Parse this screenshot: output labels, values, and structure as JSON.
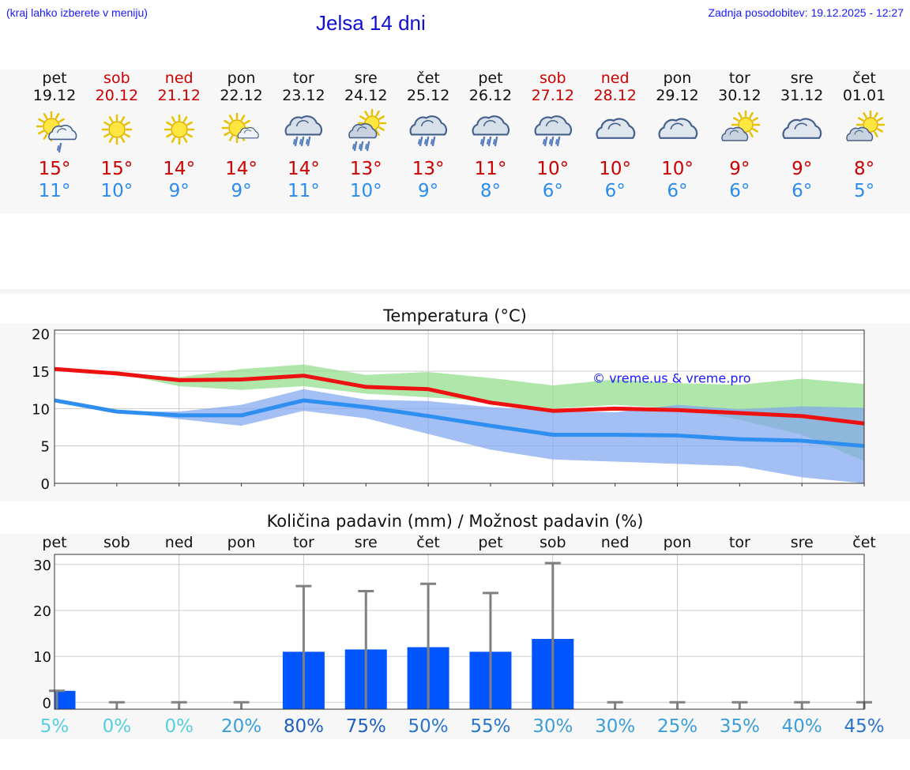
{
  "header": {
    "left_note": "(kraj lahko izberete v meniju)",
    "title": "Jelsa 14 dni",
    "updated": "Zadnja posodobitev: 19.12.2025 - 12:27"
  },
  "days": [
    {
      "name": "pet",
      "date": "19.12",
      "weekend": false,
      "icon": "sun-cloud-light-rain-icon",
      "tmax": "15°",
      "tmin": "11°"
    },
    {
      "name": "sob",
      "date": "20.12",
      "weekend": true,
      "icon": "sun-icon",
      "tmax": "15°",
      "tmin": "10°"
    },
    {
      "name": "ned",
      "date": "21.12",
      "weekend": true,
      "icon": "sun-icon",
      "tmax": "14°",
      "tmin": "9°"
    },
    {
      "name": "pon",
      "date": "22.12",
      "weekend": false,
      "icon": "sun-small-cloud-icon",
      "tmax": "14°",
      "tmin": "9°"
    },
    {
      "name": "tor",
      "date": "23.12",
      "weekend": false,
      "icon": "cloud-rain-icon",
      "tmax": "14°",
      "tmin": "11°"
    },
    {
      "name": "sre",
      "date": "24.12",
      "weekend": false,
      "icon": "sun-cloud-rain-icon",
      "tmax": "13°",
      "tmin": "10°"
    },
    {
      "name": "čet",
      "date": "25.12",
      "weekend": false,
      "icon": "cloud-rain-icon",
      "tmax": "13°",
      "tmin": "9°"
    },
    {
      "name": "pet",
      "date": "26.12",
      "weekend": false,
      "icon": "cloud-rain-icon",
      "tmax": "11°",
      "tmin": "8°"
    },
    {
      "name": "sob",
      "date": "27.12",
      "weekend": true,
      "icon": "cloud-rain-icon",
      "tmax": "10°",
      "tmin": "6°"
    },
    {
      "name": "ned",
      "date": "28.12",
      "weekend": true,
      "icon": "cloud-icon",
      "tmax": "10°",
      "tmin": "6°"
    },
    {
      "name": "pon",
      "date": "29.12",
      "weekend": false,
      "icon": "cloud-icon",
      "tmax": "10°",
      "tmin": "6°"
    },
    {
      "name": "tor",
      "date": "30.12",
      "weekend": false,
      "icon": "sun-cloud-icon",
      "tmax": "9°",
      "tmin": "6°"
    },
    {
      "name": "sre",
      "date": "31.12",
      "weekend": false,
      "icon": "cloud-icon",
      "tmax": "9°",
      "tmin": "6°"
    },
    {
      "name": "čet",
      "date": "01.01",
      "weekend": false,
      "icon": "sun-cloud-icon",
      "tmax": "8°",
      "tmin": "5°"
    }
  ],
  "colors": {
    "max_line": "#ee1111",
    "min_line": "#2e8ff0",
    "max_band": "#90dd88",
    "min_band": "#7fa6ee",
    "bar": "#0055ff",
    "whisker": "#808080",
    "weekend": "#cc0000"
  },
  "chart_data": [
    {
      "type": "line",
      "title": "Temperatura (°C)",
      "watermark": "© vreme.us & vreme.pro",
      "ylim": [
        0,
        20.5
      ],
      "yticks": [
        0,
        5,
        10,
        15,
        20
      ],
      "x": [
        0,
        1,
        2,
        3,
        4,
        5,
        6,
        7,
        8,
        9,
        10,
        11,
        12,
        13
      ],
      "series": [
        {
          "name": "max",
          "values": [
            15.3,
            14.7,
            13.8,
            13.9,
            14.4,
            12.9,
            12.6,
            10.8,
            9.7,
            10.0,
            9.8,
            9.4,
            9.0,
            8.0
          ]
        },
        {
          "name": "min",
          "values": [
            11.1,
            9.6,
            9.1,
            9.1,
            11.1,
            10.2,
            9.0,
            7.7,
            6.5,
            6.5,
            6.4,
            5.9,
            5.7,
            5.0
          ]
        }
      ],
      "bands": [
        {
          "name": "max_range",
          "low": [
            15.3,
            14.7,
            13.0,
            12.5,
            13.0,
            12.0,
            11.5,
            11.0,
            10.0,
            10.5,
            10.0,
            8.5,
            6.5,
            3.0
          ],
          "high": [
            15.3,
            14.7,
            14.2,
            15.3,
            15.9,
            14.5,
            14.9,
            14.1,
            13.1,
            13.9,
            13.4,
            13.2,
            14.0,
            13.3
          ]
        },
        {
          "name": "min_range",
          "low": [
            11.1,
            9.6,
            8.6,
            7.7,
            9.7,
            8.7,
            6.6,
            4.5,
            3.2,
            2.9,
            2.6,
            2.3,
            0.8,
            0.0
          ],
          "high": [
            11.1,
            9.6,
            9.6,
            10.5,
            12.6,
            11.2,
            11.0,
            10.2,
            9.7,
            9.5,
            10.5,
            9.9,
            10.3,
            10.1
          ]
        }
      ]
    },
    {
      "type": "bar",
      "title": "Količina padavin (mm) / Možnost padavin (%)",
      "categories": [
        "pet",
        "sob",
        "ned",
        "pon",
        "tor",
        "sre",
        "čet",
        "pet",
        "sob",
        "ned",
        "pon",
        "tor",
        "sre",
        "čet"
      ],
      "values": [
        2.5,
        0,
        0,
        0,
        11,
        11.5,
        12,
        11,
        13.8,
        0,
        0,
        0,
        0,
        0
      ],
      "error_high": [
        2.5,
        0,
        0,
        0,
        25.3,
        24.2,
        25.8,
        23.8,
        30.3,
        0,
        0,
        0,
        0,
        0
      ],
      "ylim": [
        -1.5,
        32.2
      ],
      "yticks": [
        0,
        10,
        20,
        30
      ],
      "probability": [
        "5%",
        "0%",
        "0%",
        "20%",
        "80%",
        "75%",
        "50%",
        "55%",
        "30%",
        "30%",
        "25%",
        "35%",
        "40%",
        "45%"
      ],
      "probability_values": [
        5,
        0,
        0,
        20,
        80,
        75,
        50,
        55,
        30,
        30,
        25,
        35,
        40,
        45
      ]
    }
  ]
}
